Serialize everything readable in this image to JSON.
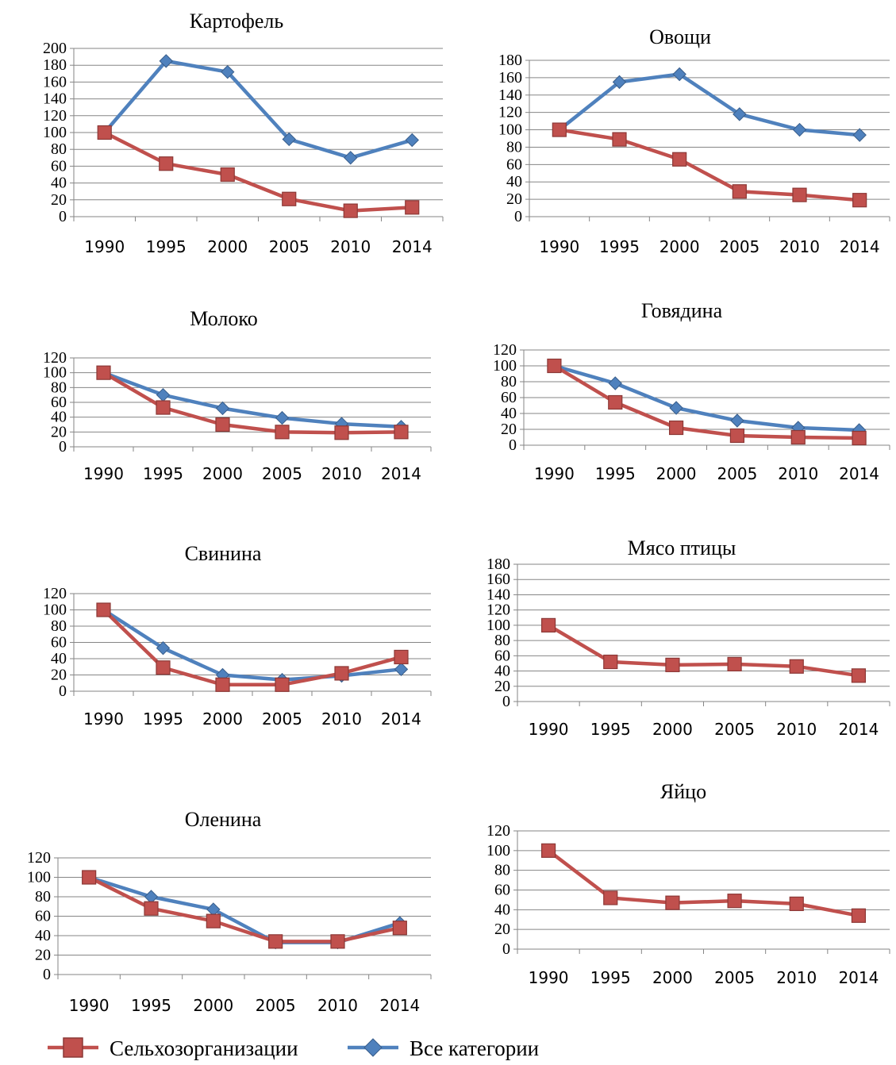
{
  "colors": {
    "agri": "#c0504d",
    "agri_stroke": "#8c3836",
    "all": "#4f81bd",
    "all_stroke": "#385d8a"
  },
  "legend": [
    {
      "label": "Сельхозорганизации",
      "key": "agri",
      "marker": "square"
    },
    {
      "label": "Все категории",
      "key": "all",
      "marker": "diamond"
    }
  ],
  "chart_data": [
    {
      "type": "line",
      "title": "Картофель",
      "categories": [
        "1990",
        "1995",
        "2000",
        "2005",
        "2010",
        "2014"
      ],
      "ylim": [
        0,
        200
      ],
      "yticks": [
        0,
        20,
        40,
        60,
        80,
        100,
        120,
        140,
        160,
        180,
        200
      ],
      "series": [
        {
          "name": "Сельхозорганизации",
          "key": "agri",
          "values": [
            100,
            63,
            50,
            21,
            7,
            11
          ]
        },
        {
          "name": "Все категории",
          "key": "all",
          "values": [
            100,
            185,
            172,
            92,
            70,
            91
          ]
        }
      ]
    },
    {
      "type": "line",
      "title": "Овощи",
      "categories": [
        "1990",
        "1995",
        "2000",
        "2005",
        "2010",
        "2014"
      ],
      "ylim": [
        0,
        180
      ],
      "yticks": [
        0,
        20,
        40,
        60,
        80,
        100,
        120,
        140,
        160,
        180
      ],
      "series": [
        {
          "name": "Сельхозорганизации",
          "key": "agri",
          "values": [
            100,
            89,
            66,
            29,
            25,
            19
          ]
        },
        {
          "name": "Все категории",
          "key": "all",
          "values": [
            100,
            155,
            164,
            118,
            100,
            94
          ]
        }
      ]
    },
    {
      "type": "line",
      "title": "Молоко",
      "categories": [
        "1990",
        "1995",
        "2000",
        "2005",
        "2010",
        "2014"
      ],
      "ylim": [
        0,
        120
      ],
      "yticks": [
        0,
        20,
        40,
        60,
        80,
        100,
        120
      ],
      "series": [
        {
          "name": "Сельхозорганизации",
          "key": "agri",
          "values": [
            100,
            53,
            30,
            20,
            19,
            20
          ]
        },
        {
          "name": "Все категории",
          "key": "all",
          "values": [
            100,
            70,
            52,
            39,
            31,
            27
          ]
        }
      ]
    },
    {
      "type": "line",
      "title": "Говядина",
      "categories": [
        "1990",
        "1995",
        "2000",
        "2005",
        "2010",
        "2014"
      ],
      "ylim": [
        0,
        120
      ],
      "yticks": [
        0,
        20,
        40,
        60,
        80,
        100,
        120
      ],
      "series": [
        {
          "name": "Сельхозорганизации",
          "key": "agri",
          "values": [
            100,
            54,
            22,
            12,
            10,
            9
          ]
        },
        {
          "name": "Все категории",
          "key": "all",
          "values": [
            100,
            78,
            47,
            31,
            22,
            19
          ]
        }
      ]
    },
    {
      "type": "line",
      "title": "Свинина",
      "categories": [
        "1990",
        "1995",
        "2000",
        "2005",
        "2010",
        "2014"
      ],
      "ylim": [
        0,
        120
      ],
      "yticks": [
        0,
        20,
        40,
        60,
        80,
        100,
        120
      ],
      "series": [
        {
          "name": "Сельхозорганизации",
          "key": "agri",
          "values": [
            100,
            29,
            8,
            8,
            22,
            42
          ]
        },
        {
          "name": "Все категории",
          "key": "all",
          "values": [
            100,
            53,
            20,
            14,
            19,
            27
          ]
        }
      ]
    },
    {
      "type": "line",
      "title": "Мясо птицы",
      "categories": [
        "1990",
        "1995",
        "2000",
        "2005",
        "2010",
        "2014"
      ],
      "ylim": [
        0,
        180
      ],
      "yticks": [
        0,
        20,
        40,
        60,
        80,
        100,
        120,
        140,
        160,
        180
      ],
      "series": [
        {
          "name": "Сельхозорганизации",
          "key": "agri",
          "values": [
            100,
            52,
            48,
            49,
            46,
            34
          ]
        }
      ]
    },
    {
      "type": "line",
      "title": "Оленина",
      "categories": [
        "1990",
        "1995",
        "2000",
        "2005",
        "2010",
        "2014"
      ],
      "ylim": [
        0,
        120
      ],
      "yticks": [
        0,
        20,
        40,
        60,
        80,
        100,
        120
      ],
      "series": [
        {
          "name": "Сельхозорганизации",
          "key": "agri",
          "values": [
            100,
            68,
            55,
            34,
            34,
            48
          ]
        },
        {
          "name": "Все категории",
          "key": "all",
          "values": [
            100,
            80,
            67,
            33,
            33,
            53
          ]
        }
      ]
    },
    {
      "type": "line",
      "title": "Яйцо",
      "categories": [
        "1990",
        "1995",
        "2000",
        "2005",
        "2010",
        "2014"
      ],
      "ylim": [
        0,
        120
      ],
      "yticks": [
        0,
        20,
        40,
        60,
        80,
        100,
        120
      ],
      "series": [
        {
          "name": "Сельхозорганизации",
          "key": "agri",
          "values": [
            100,
            52,
            47,
            49,
            46,
            34
          ]
        }
      ]
    }
  ]
}
